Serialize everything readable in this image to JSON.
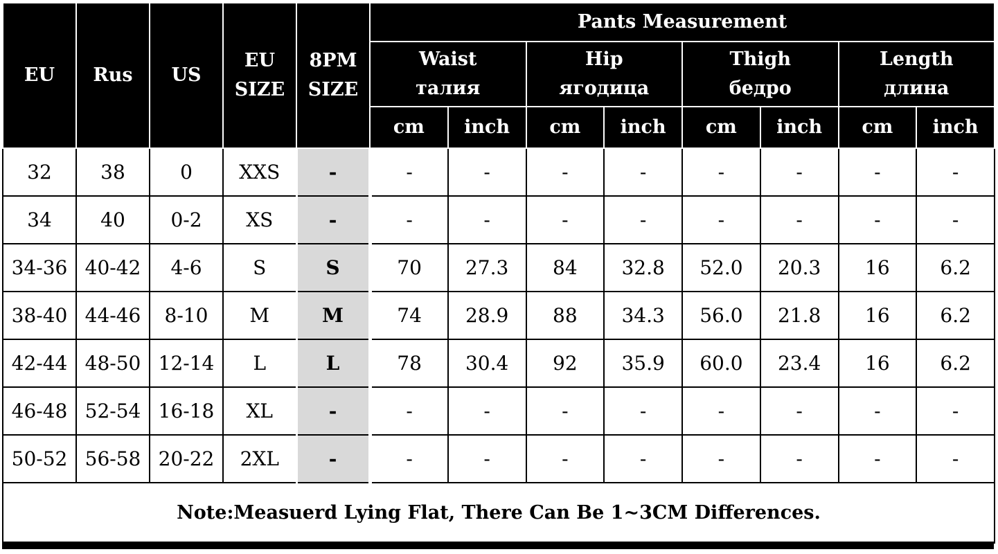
{
  "header": {
    "eu": "EU",
    "rus": "Rus",
    "us": "US",
    "eu_size_line1": "EU",
    "eu_size_line2": "SIZE",
    "pm_size_line1": "8PM",
    "pm_size_line2": "SIZE",
    "group_title": "Pants Measurement",
    "measures": [
      {
        "en": "Waist",
        "ru": "талия"
      },
      {
        "en": "Hip",
        "ru": "ягодица"
      },
      {
        "en": "Thigh",
        "ru": "бедро"
      },
      {
        "en": "Length",
        "ru": "длина"
      }
    ],
    "unit_cm": "cm",
    "unit_inch": "inch"
  },
  "rows": [
    {
      "eu": "32",
      "rus": "38",
      "us": "0",
      "eu_size": "XXS",
      "pm_size": "-",
      "waist_cm": "-",
      "waist_inch": "-",
      "hip_cm": "-",
      "hip_inch": "-",
      "thigh_cm": "-",
      "thigh_inch": "-",
      "length_cm": "-",
      "length_inch": "-"
    },
    {
      "eu": "34",
      "rus": "40",
      "us": "0-2",
      "eu_size": "XS",
      "pm_size": "-",
      "waist_cm": "-",
      "waist_inch": "-",
      "hip_cm": "-",
      "hip_inch": "-",
      "thigh_cm": "-",
      "thigh_inch": "-",
      "length_cm": "-",
      "length_inch": "-"
    },
    {
      "eu": "34-36",
      "rus": "40-42",
      "us": "4-6",
      "eu_size": "S",
      "pm_size": "S",
      "waist_cm": "70",
      "waist_inch": "27.3",
      "hip_cm": "84",
      "hip_inch": "32.8",
      "thigh_cm": "52.0",
      "thigh_inch": "20.3",
      "length_cm": "16",
      "length_inch": "6.2"
    },
    {
      "eu": "38-40",
      "rus": "44-46",
      "us": "8-10",
      "eu_size": "M",
      "pm_size": "M",
      "waist_cm": "74",
      "waist_inch": "28.9",
      "hip_cm": "88",
      "hip_inch": "34.3",
      "thigh_cm": "56.0",
      "thigh_inch": "21.8",
      "length_cm": "16",
      "length_inch": "6.2"
    },
    {
      "eu": "42-44",
      "rus": "48-50",
      "us": "12-14",
      "eu_size": "L",
      "pm_size": "L",
      "waist_cm": "78",
      "waist_inch": "30.4",
      "hip_cm": "92",
      "hip_inch": "35.9",
      "thigh_cm": "60.0",
      "thigh_inch": "23.4",
      "length_cm": "16",
      "length_inch": "6.2"
    },
    {
      "eu": "46-48",
      "rus": "52-54",
      "us": "16-18",
      "eu_size": "XL",
      "pm_size": "-",
      "waist_cm": "-",
      "waist_inch": "-",
      "hip_cm": "-",
      "hip_inch": "-",
      "thigh_cm": "-",
      "thigh_inch": "-",
      "length_cm": "-",
      "length_inch": "-"
    },
    {
      "eu": "50-52",
      "rus": "56-58",
      "us": "20-22",
      "eu_size": "2XL",
      "pm_size": "-",
      "waist_cm": "-",
      "waist_inch": "-",
      "hip_cm": "-",
      "hip_inch": "-",
      "thigh_cm": "-",
      "thigh_inch": "-",
      "length_cm": "-",
      "length_inch": "-"
    }
  ],
  "note": "Note:Measuerd Lying Flat, There Can Be 1~3CM Differences.",
  "colors": {
    "header_bg": "#000000",
    "header_text": "#ffffff",
    "pm_cell_bg": "#d9d9d9",
    "body_bg": "#ffffff"
  }
}
